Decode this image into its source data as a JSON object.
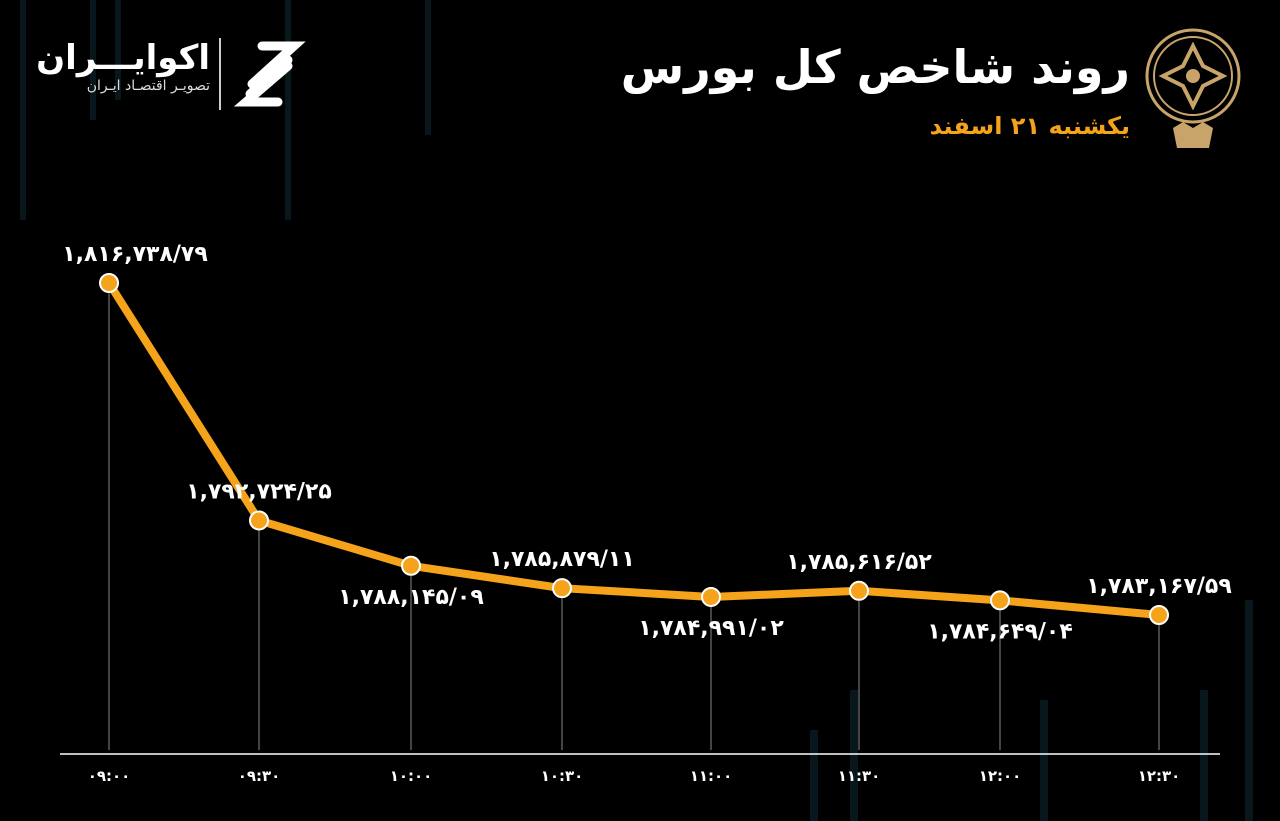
{
  "header": {
    "title": "روند شاخص کل بورس",
    "subtitle": "یکشنبه ۲۱ اسفند"
  },
  "brand": {
    "name": "اکوایـــران",
    "tagline": "تصویـر اقتصـاد ایـران"
  },
  "colors": {
    "background": "#000000",
    "line": "#f5a31a",
    "marker": "#f5a31a",
    "marker_stroke": "#ffffff",
    "subtitle": "#f5a31a"
  },
  "chart_data": {
    "type": "line",
    "title": "روند شاخص کل بورس",
    "categories": [
      "۰۹:۰۰",
      "۰۹:۳۰",
      "۱۰:۰۰",
      "۱۰:۳۰",
      "۱۱:۰۰",
      "۱۱:۳۰",
      "۱۲:۰۰",
      "۱۲:۳۰"
    ],
    "values": [
      1816738.79,
      1792724.25,
      1788145.09,
      1785879.11,
      1784991.02,
      1785616.52,
      1784649.04,
      1783167.59
    ],
    "data_labels": [
      "۱,۸۱۶,۷۳۸/۷۹",
      "۱,۷۹۲,۷۲۴/۲۵",
      "۱,۷۸۸,۱۴۵/۰۹",
      "۱,۷۸۵,۸۷۹/۱۱",
      "۱,۷۸۴,۹۹۱/۰۲",
      "۱,۷۸۵,۶۱۶/۵۲",
      "۱,۷۸۴,۶۴۹/۰۴",
      "۱,۷۸۳,۱۶۷/۵۹"
    ],
    "xlabel": "",
    "ylabel": "",
    "grid": false,
    "legend": "none"
  }
}
